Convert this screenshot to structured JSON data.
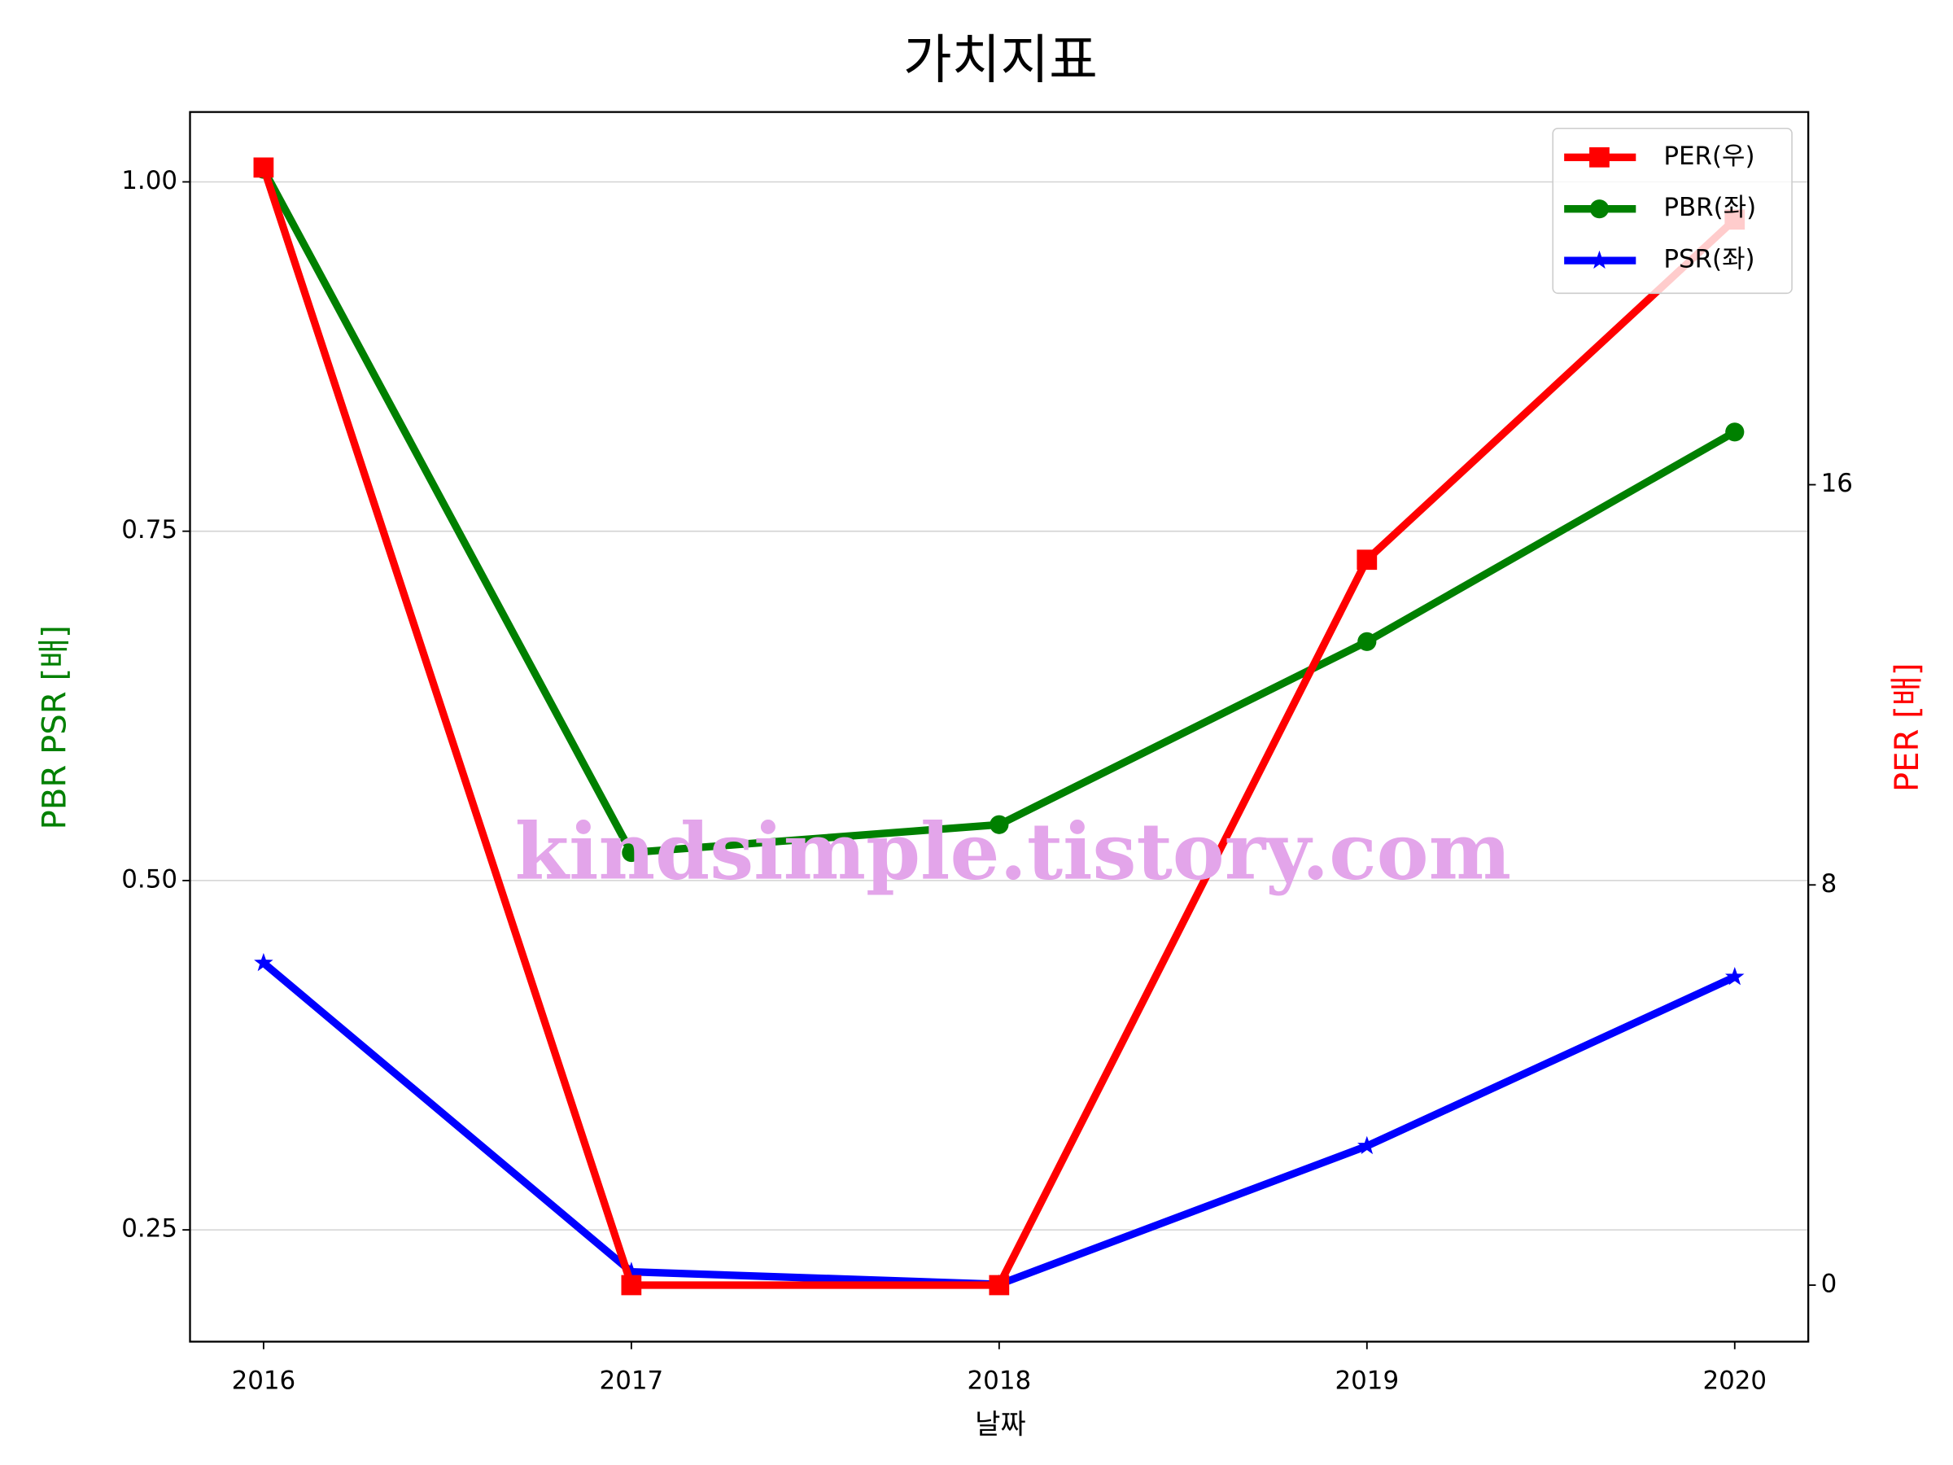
{
  "chart_data": {
    "type": "line",
    "title": "가치지표",
    "xlabel": "날짜",
    "ylabel": "PBR PSR [배]",
    "ylabel_color": "#008000",
    "y2label": "PER [배]",
    "y2label_color": "#ff0000",
    "watermark": "kindsimple.tistory.com",
    "x": [
      2016,
      2017,
      2018,
      2019,
      2020
    ],
    "xlim": [
      2015.8,
      2020.2
    ],
    "xticks": [
      2016,
      2017,
      2018,
      2019,
      2020
    ],
    "ylim": [
      0.17,
      1.05
    ],
    "yticks": [
      {
        "value": 0.25,
        "label": "0.25"
      },
      {
        "value": 0.5,
        "label": "0.50"
      },
      {
        "value": 0.75,
        "label": "0.75"
      },
      {
        "value": 1.0,
        "label": "1.00"
      }
    ],
    "y2lim": [
      -1.13,
      23.45
    ],
    "y2ticks": [
      0,
      8,
      16
    ],
    "grid": true,
    "legend": "upper-right",
    "series": [
      {
        "name": "PER(우)",
        "color": "#ff0000",
        "marker": "square",
        "axis": "y2",
        "values": [
          22.34,
          0,
          0,
          14.5,
          21.3
        ]
      },
      {
        "name": "PBR(좌)",
        "color": "#008000",
        "marker": "circle",
        "values": [
          1.009,
          0.52,
          0.54,
          0.671,
          0.821
        ]
      },
      {
        "name": "PSR(좌)",
        "color": "#0000ff",
        "marker": "star",
        "values": [
          0.441,
          0.22,
          0.211,
          0.31,
          0.431
        ]
      }
    ]
  }
}
